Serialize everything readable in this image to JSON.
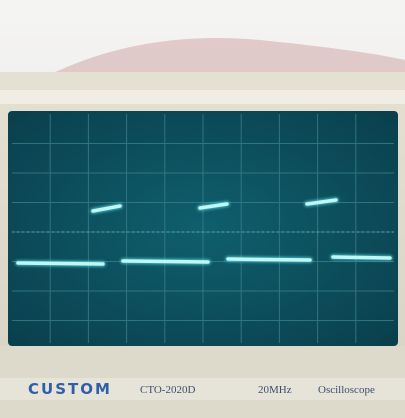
{
  "panel": {
    "brand": "CUSTOM",
    "model": "CTO-2020D",
    "bandwidth": "20MHz",
    "device": "Oscilloscope"
  }
}
